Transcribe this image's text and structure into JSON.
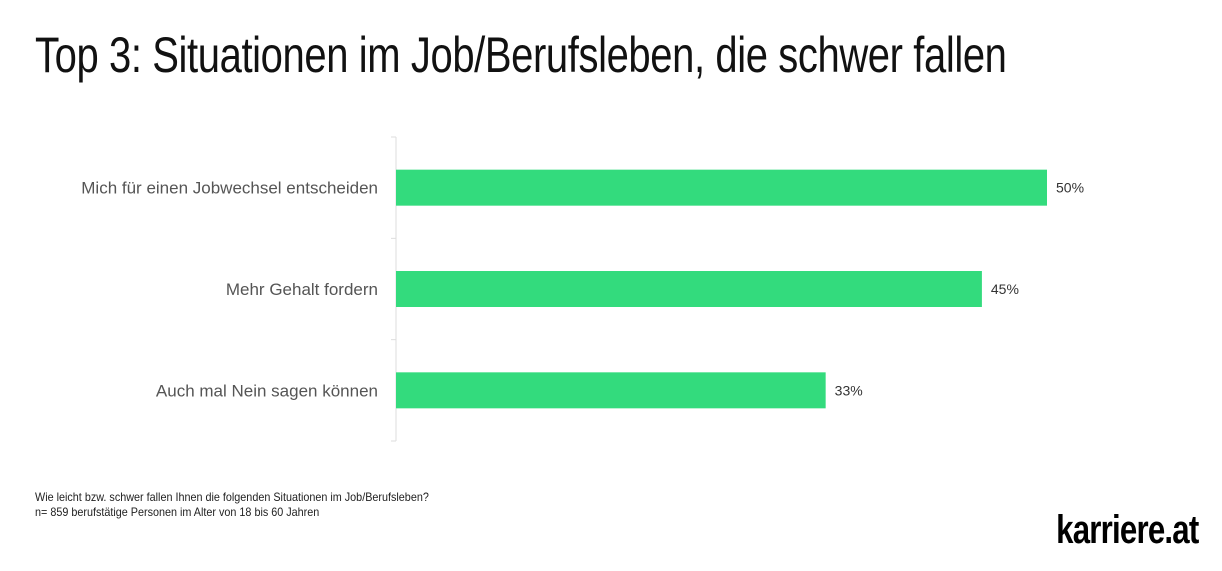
{
  "chart_data": {
    "type": "bar",
    "orientation": "horizontal",
    "title": "Top 3: Situationen im Job/Berufsleben, die schwer fallen",
    "categories": [
      "Mich für einen Jobwechsel entscheiden",
      "Mehr Gehalt fordern",
      "Auch mal Nein sagen können"
    ],
    "values": [
      50,
      45,
      33
    ],
    "data_labels": [
      "50%",
      "45%",
      "33%"
    ],
    "unit": "%",
    "xlim": [
      0,
      50
    ],
    "grid": false,
    "bar_color": "#33db7d"
  },
  "footnote": {
    "question": "Wie leicht bzw. schwer fallen Ihnen die folgenden Situationen im Job/Berufsleben?",
    "sample": "n= 859 berufstätige Personen im Alter von 18 bis 60 Jahren"
  },
  "logo": "karriere.at"
}
